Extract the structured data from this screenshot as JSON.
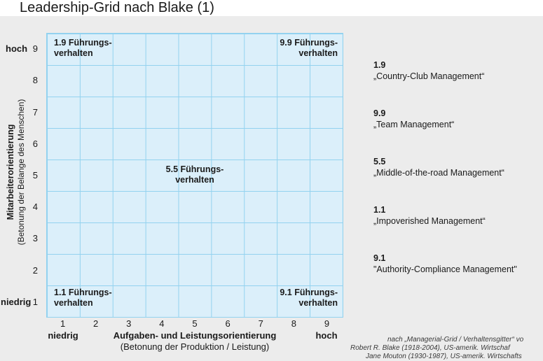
{
  "slide_title": "Leadership-Grid nach Blake (1)",
  "grid": {
    "cell_labels": {
      "top_left": {
        "line1": "1.9 Führungs-",
        "line2": "verhalten"
      },
      "top_right": {
        "line1": "9.9 Führungs-",
        "line2": "verhalten"
      },
      "center": {
        "line1": "5.5 Führungs-",
        "line2": "verhalten"
      },
      "bottom_left": {
        "line1": "1.1 Führungs-",
        "line2": "verhalten"
      },
      "bottom_right": {
        "line1": "9.1 Führungs-",
        "line2": "verhalten"
      }
    }
  },
  "y_axis": {
    "title": "Mitarbeiterorientierung",
    "subtitle": "(Betonung der Belange des Menschen)",
    "high": "hoch",
    "low": "niedrig",
    "ticks": [
      "9",
      "8",
      "7",
      "6",
      "5",
      "4",
      "3",
      "2",
      "1"
    ]
  },
  "x_axis": {
    "title": "Aufgaben- und Leistungsorientierung",
    "subtitle": "(Betonung der Produktion / Leistung)",
    "low": "niedrig",
    "high": "hoch",
    "ticks": [
      "1",
      "2",
      "3",
      "4",
      "5",
      "6",
      "7",
      "8",
      "9"
    ]
  },
  "legend": [
    {
      "code": "1.9",
      "name": "„Country-Club Management“"
    },
    {
      "code": "9.9",
      "name": "„Team Management“"
    },
    {
      "code": "5.5",
      "name": "„Middle-of-the-road Management“"
    },
    {
      "code": "1.1",
      "name": "„Impoverished Management“"
    },
    {
      "code": "9.1",
      "name": "\"Authority-Compliance Management\""
    }
  ],
  "citation": {
    "line1": "nach „Managerial-Grid / Verhaltensgitter“ vo",
    "line2": "Robert R. Blake (1918-2004), US-amerik. Wirtschaf",
    "line3": "Jane Mouton (1930-1987), US-amerik. Wirtschafts"
  },
  "colors": {
    "background": "#ececec",
    "grid_fill": "#dbeffa",
    "grid_line": "#93d2ef",
    "text": "#1a1a1a"
  }
}
